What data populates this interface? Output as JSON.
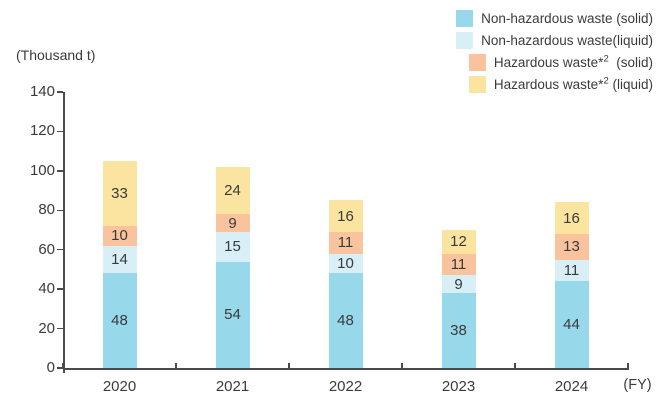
{
  "chart_data": {
    "type": "bar",
    "stacked": true,
    "title": "",
    "ylabel": "(Thousand t)",
    "xlabel": "(FY)",
    "categories": [
      "2020",
      "2021",
      "2022",
      "2023",
      "2024"
    ],
    "series": [
      {
        "name": "Non-hazardous waste (solid)",
        "color": "#97d8eb",
        "values": [
          48,
          54,
          48,
          38,
          44
        ]
      },
      {
        "name": "Non-hazardous waste(liquid)",
        "color": "#d8eff8",
        "values": [
          14,
          15,
          10,
          9,
          11
        ]
      },
      {
        "name": "Hazardous waste*2 (solid)",
        "color": "#f9c49d",
        "values": [
          10,
          9,
          11,
          11,
          13
        ]
      },
      {
        "name": "Hazardous waste*2 (liquid)",
        "color": "#fbe3a0",
        "values": [
          33,
          24,
          16,
          12,
          16
        ]
      }
    ],
    "totals": [
      105,
      102,
      85,
      70,
      84
    ],
    "ylim": [
      0,
      140
    ],
    "yticks": [
      0,
      20,
      40,
      60,
      80,
      100,
      120,
      140
    ],
    "grid": false,
    "legend_position": "top-right",
    "value_labels": "inside-segments"
  },
  "legend": {
    "items": [
      {
        "pre": "Non-hazardous waste (solid)",
        "sup": "",
        "post": "",
        "color": "#97d8eb"
      },
      {
        "pre": "Non-hazardous waste(liquid)",
        "sup": "",
        "post": "",
        "color": "#d8eff8"
      },
      {
        "pre": "Hazardous waste*",
        "sup": "2",
        "post": "  (solid)",
        "color": "#f9c49d"
      },
      {
        "pre": "Hazardous waste*",
        "sup": "2",
        "post": " (liquid)",
        "color": "#fbe3a0"
      }
    ]
  },
  "colors": {
    "axis": "#4a4a4a",
    "text": "#3b3b3b"
  }
}
